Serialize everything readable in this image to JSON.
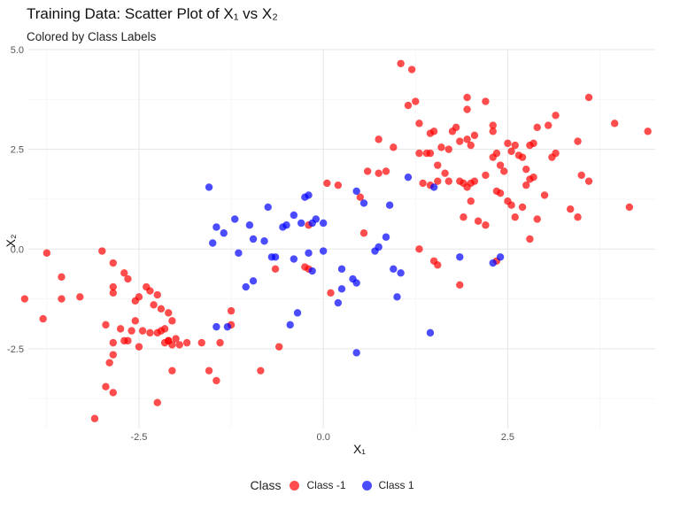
{
  "chart_data": {
    "type": "scatter",
    "title": "Training Data: Scatter Plot of X₁ vs X₂",
    "subtitle": "Colored by Class Labels",
    "xlabel": "X₁",
    "ylabel": "X₂",
    "xlim": [
      -4.0,
      4.5
    ],
    "ylim": [
      -4.5,
      5.0
    ],
    "x_ticks": [
      -2.5,
      0.0,
      2.5
    ],
    "y_ticks": [
      -2.5,
      0.0,
      2.5,
      5.0
    ],
    "x_tick_labels": [
      "-2.5",
      "0.0",
      "2.5"
    ],
    "y_tick_labels": [
      "-2.5",
      "0.0",
      "2.5",
      "5.0"
    ],
    "grid": true,
    "legend_position": "bottom",
    "legend_title": "Class",
    "series": [
      {
        "name": "Class -1",
        "color": "#ff0000",
        "points": [
          [
            1.05,
            4.65
          ],
          [
            1.2,
            4.5
          ],
          [
            1.25,
            3.7
          ],
          [
            1.15,
            3.6
          ],
          [
            1.3,
            3.15
          ],
          [
            1.45,
            2.9
          ],
          [
            1.5,
            2.95
          ],
          [
            0.75,
            2.75
          ],
          [
            0.95,
            2.55
          ],
          [
            1.3,
            2.4
          ],
          [
            1.4,
            2.4
          ],
          [
            1.45,
            2.4
          ],
          [
            1.55,
            2.1
          ],
          [
            1.6,
            2.55
          ],
          [
            1.7,
            2.5
          ],
          [
            1.75,
            2.95
          ],
          [
            1.8,
            3.05
          ],
          [
            1.85,
            2.7
          ],
          [
            1.95,
            2.75
          ],
          [
            2.0,
            2.6
          ],
          [
            2.05,
            2.85
          ],
          [
            1.95,
            3.8
          ],
          [
            1.95,
            3.5
          ],
          [
            2.2,
            3.7
          ],
          [
            2.3,
            2.95
          ],
          [
            2.35,
            2.4
          ],
          [
            2.3,
            2.3
          ],
          [
            2.4,
            2.1
          ],
          [
            2.45,
            1.95
          ],
          [
            2.5,
            2.65
          ],
          [
            2.55,
            2.45
          ],
          [
            2.6,
            2.6
          ],
          [
            2.65,
            2.35
          ],
          [
            2.7,
            2.3
          ],
          [
            2.75,
            2.0
          ],
          [
            2.8,
            2.6
          ],
          [
            2.85,
            2.65
          ],
          [
            2.9,
            3.05
          ],
          [
            2.3,
            3.1
          ],
          [
            2.2,
            1.85
          ],
          [
            2.35,
            1.45
          ],
          [
            2.4,
            1.4
          ],
          [
            2.5,
            1.2
          ],
          [
            2.55,
            1.1
          ],
          [
            2.6,
            0.8
          ],
          [
            2.7,
            1.05
          ],
          [
            2.75,
            1.6
          ],
          [
            2.8,
            1.75
          ],
          [
            2.85,
            1.8
          ],
          [
            2.9,
            0.75
          ],
          [
            3.0,
            1.35
          ],
          [
            3.05,
            3.1
          ],
          [
            3.1,
            2.3
          ],
          [
            3.15,
            2.4
          ],
          [
            3.15,
            3.35
          ],
          [
            3.35,
            1.0
          ],
          [
            3.45,
            0.8
          ],
          [
            3.45,
            2.7
          ],
          [
            3.5,
            1.85
          ],
          [
            3.6,
            3.8
          ],
          [
            3.6,
            1.7
          ],
          [
            3.95,
            3.15
          ],
          [
            4.15,
            1.05
          ],
          [
            4.4,
            2.95
          ],
          [
            1.9,
            1.65
          ],
          [
            1.95,
            1.55
          ],
          [
            2.0,
            1.65
          ],
          [
            1.85,
            1.7
          ],
          [
            2.05,
            1.7
          ],
          [
            1.7,
            1.7
          ],
          [
            1.65,
            1.9
          ],
          [
            1.55,
            1.7
          ],
          [
            1.35,
            1.65
          ],
          [
            1.45,
            1.6
          ],
          [
            1.9,
            0.8
          ],
          [
            2.1,
            0.7
          ],
          [
            2.2,
            0.6
          ],
          [
            2.35,
            -0.3
          ],
          [
            1.5,
            -0.3
          ],
          [
            1.55,
            -0.4
          ],
          [
            1.3,
            0.0
          ],
          [
            1.85,
            -0.9
          ],
          [
            2.0,
            1.2
          ],
          [
            2.8,
            0.25
          ],
          [
            0.85,
            1.95
          ],
          [
            0.75,
            1.9
          ],
          [
            0.6,
            1.95
          ],
          [
            0.5,
            1.3
          ],
          [
            0.55,
            0.4
          ],
          [
            0.2,
            1.6
          ],
          [
            0.05,
            1.65
          ],
          [
            -0.2,
            0.6
          ],
          [
            -0.2,
            -0.5
          ],
          [
            -0.25,
            -0.45
          ],
          [
            -0.65,
            -0.5
          ],
          [
            0.1,
            -1.1
          ],
          [
            -0.6,
            -2.45
          ],
          [
            -0.85,
            -3.05
          ],
          [
            -1.25,
            -1.55
          ],
          [
            -1.25,
            -1.9
          ],
          [
            -1.4,
            -2.35
          ],
          [
            -1.45,
            -3.3
          ],
          [
            -1.55,
            -3.05
          ],
          [
            -1.65,
            -2.35
          ],
          [
            -1.85,
            -2.35
          ],
          [
            -1.95,
            -2.4
          ],
          [
            -2.0,
            -2.25
          ],
          [
            -2.05,
            -2.4
          ],
          [
            -2.05,
            -3.05
          ],
          [
            -2.1,
            -2.3
          ],
          [
            -2.15,
            -2.35
          ],
          [
            -2.05,
            -1.8
          ],
          [
            -2.1,
            -1.6
          ],
          [
            -2.2,
            -1.5
          ],
          [
            -2.3,
            -1.4
          ],
          [
            -2.25,
            -1.15
          ],
          [
            -2.35,
            -1.05
          ],
          [
            -2.4,
            -0.95
          ],
          [
            -2.5,
            -1.2
          ],
          [
            -2.55,
            -1.3
          ],
          [
            -2.55,
            -1.8
          ],
          [
            -2.6,
            -2.05
          ],
          [
            -2.45,
            -2.05
          ],
          [
            -2.35,
            -2.1
          ],
          [
            -2.25,
            -2.1
          ],
          [
            -2.2,
            -2.05
          ],
          [
            -2.15,
            -2.0
          ],
          [
            -2.1,
            -2.3
          ],
          [
            -2.5,
            -2.45
          ],
          [
            -2.65,
            -0.75
          ],
          [
            -2.7,
            -0.6
          ],
          [
            -2.85,
            -0.35
          ],
          [
            -2.85,
            -0.95
          ],
          [
            -2.85,
            -1.1
          ],
          [
            -3.0,
            -0.05
          ],
          [
            -3.55,
            -0.7
          ],
          [
            -3.75,
            -0.1
          ],
          [
            -3.8,
            -1.75
          ],
          [
            -3.55,
            -1.25
          ],
          [
            -3.3,
            -1.2
          ],
          [
            -4.05,
            -1.25
          ],
          [
            -2.95,
            -1.9
          ],
          [
            -2.75,
            -2.0
          ],
          [
            -2.7,
            -2.3
          ],
          [
            -2.85,
            -2.35
          ],
          [
            -2.85,
            -2.65
          ],
          [
            -2.9,
            -2.85
          ],
          [
            -2.95,
            -3.45
          ],
          [
            -2.85,
            -3.6
          ],
          [
            -2.25,
            -3.85
          ],
          [
            -3.1,
            -4.25
          ],
          [
            -2.65,
            -2.3
          ]
        ]
      },
      {
        "name": "Class 1",
        "color": "#0000ff",
        "points": [
          [
            -1.55,
            1.55
          ],
          [
            -1.45,
            0.55
          ],
          [
            -1.5,
            0.15
          ],
          [
            -1.35,
            0.4
          ],
          [
            -1.2,
            0.75
          ],
          [
            -1.0,
            0.6
          ],
          [
            -0.95,
            0.25
          ],
          [
            -0.8,
            0.2
          ],
          [
            -0.75,
            1.05
          ],
          [
            -0.5,
            0.6
          ],
          [
            -0.55,
            0.55
          ],
          [
            -0.4,
            0.85
          ],
          [
            -0.3,
            0.65
          ],
          [
            -0.25,
            1.3
          ],
          [
            -0.2,
            1.35
          ],
          [
            -0.15,
            0.65
          ],
          [
            -0.1,
            0.75
          ],
          [
            0.0,
            0.65
          ],
          [
            -0.7,
            -0.2
          ],
          [
            -0.65,
            -0.2
          ],
          [
            -0.4,
            -0.25
          ],
          [
            -0.15,
            -0.55
          ],
          [
            -0.2,
            -0.1
          ],
          [
            0.0,
            -0.05
          ],
          [
            -1.15,
            -0.1
          ],
          [
            -1.05,
            -0.95
          ],
          [
            -0.95,
            -0.8
          ],
          [
            -0.45,
            -1.9
          ],
          [
            -0.35,
            -1.6
          ],
          [
            0.2,
            -1.35
          ],
          [
            0.25,
            -1.0
          ],
          [
            0.4,
            -0.75
          ],
          [
            0.45,
            -0.85
          ],
          [
            0.45,
            1.45
          ],
          [
            0.55,
            1.15
          ],
          [
            0.75,
            0.05
          ],
          [
            0.85,
            0.3
          ],
          [
            0.95,
            -0.5
          ],
          [
            1.0,
            -1.2
          ],
          [
            1.05,
            -0.6
          ],
          [
            1.15,
            1.8
          ],
          [
            0.9,
            1.1
          ],
          [
            1.5,
            1.55
          ],
          [
            1.45,
            -2.1
          ],
          [
            0.45,
            -2.6
          ],
          [
            -1.45,
            -1.95
          ],
          [
            -1.3,
            -1.95
          ],
          [
            1.85,
            -0.2
          ],
          [
            2.3,
            -0.35
          ],
          [
            2.4,
            -0.2
          ],
          [
            0.25,
            -0.5
          ],
          [
            0.7,
            -0.05
          ]
        ]
      }
    ]
  },
  "legend": {
    "title": "Class",
    "items": [
      {
        "label": "Class -1",
        "color": "#ff0000"
      },
      {
        "label": "Class 1",
        "color": "#0000ff"
      }
    ]
  }
}
